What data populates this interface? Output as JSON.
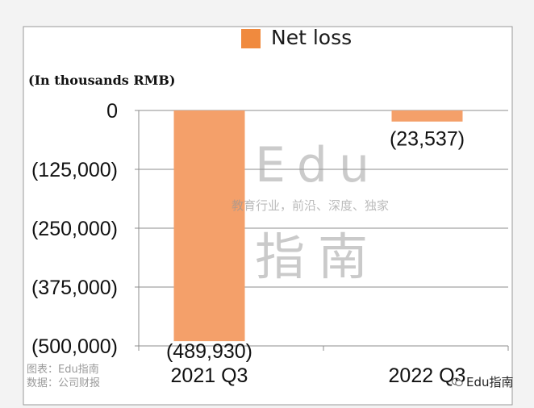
{
  "chart_data": {
    "type": "bar",
    "title": "",
    "legend": [
      "Net loss"
    ],
    "ylabel": "(In thousands RMB)",
    "xlabel": "",
    "categories": [
      "2021 Q3",
      "2022 Q3"
    ],
    "series": [
      {
        "name": "Net loss",
        "values": [
          -489930,
          -23537
        ],
        "labels": [
          "(489,930)",
          "(23,537)"
        ],
        "color": "#f4a06a"
      }
    ],
    "ylim": [
      -500000,
      0
    ],
    "yticks": [
      0,
      -125000,
      -250000,
      -375000,
      -500000
    ],
    "ytick_labels": [
      "0",
      "(125,000)",
      "(250,000)",
      "(375,000)",
      "(500,000)"
    ],
    "grid": true,
    "legend_position": "top-center"
  },
  "legend_swatch_color": "#f08a3e",
  "watermark": {
    "big": "Edu",
    "tagline": "教育行业，前沿、深度、独家",
    "cn": "指南"
  },
  "source": {
    "line1": "图表：Edu指南",
    "line2": "数据：公司财报"
  },
  "brand": "Edu指南"
}
